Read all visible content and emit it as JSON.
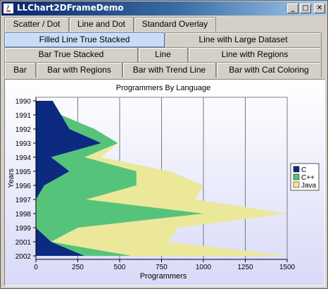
{
  "window": {
    "title": "LLChart2DFrameDemo",
    "minimize": "_",
    "maximize": "□",
    "close": "✕"
  },
  "tabs": [
    {
      "label": "Scatter / Dot"
    },
    {
      "label": "Line and Dot"
    },
    {
      "label": "Standard Overlay"
    },
    {
      "label": "Filled Line True Stacked",
      "selected": true
    },
    {
      "label": "Line with Large Dataset"
    },
    {
      "label": "Bar True Stacked"
    },
    {
      "label": "Line"
    },
    {
      "label": "Line with Regions"
    },
    {
      "label": "Bar"
    },
    {
      "label": "Bar with Regions"
    },
    {
      "label": "Bar with Trend Line"
    },
    {
      "label": "Bar with Cat Coloring"
    }
  ],
  "chart_data": {
    "type": "area",
    "orientation": "horizontal-stacked",
    "title": "Programmers By Language",
    "xlabel": "Programmers",
    "ylabel": "Years",
    "categories": [
      "1990",
      "1991",
      "1992",
      "1993",
      "1994",
      "1995",
      "1996",
      "1997",
      "1998",
      "1999",
      "2001",
      "2002"
    ],
    "xlim": [
      0,
      1500
    ],
    "xticks": [
      0,
      250,
      500,
      750,
      1000,
      1250,
      1500
    ],
    "grid": "vertical",
    "legend": "right",
    "series": [
      {
        "name": "C",
        "color": "#0b2a80",
        "values": [
          100,
          150,
          200,
          390,
          90,
          200,
          50,
          0,
          0,
          0,
          90,
          290
        ]
      },
      {
        "name": "C++",
        "color": "#55c47a",
        "values": [
          0,
          0,
          150,
          100,
          200,
          400,
          550,
          300,
          1000,
          250,
          0,
          280
        ]
      },
      {
        "name": "Java",
        "color": "#ece89a",
        "values": [
          0,
          0,
          0,
          0,
          100,
          200,
          400,
          650,
          500,
          600,
          700,
          930
        ]
      }
    ]
  }
}
